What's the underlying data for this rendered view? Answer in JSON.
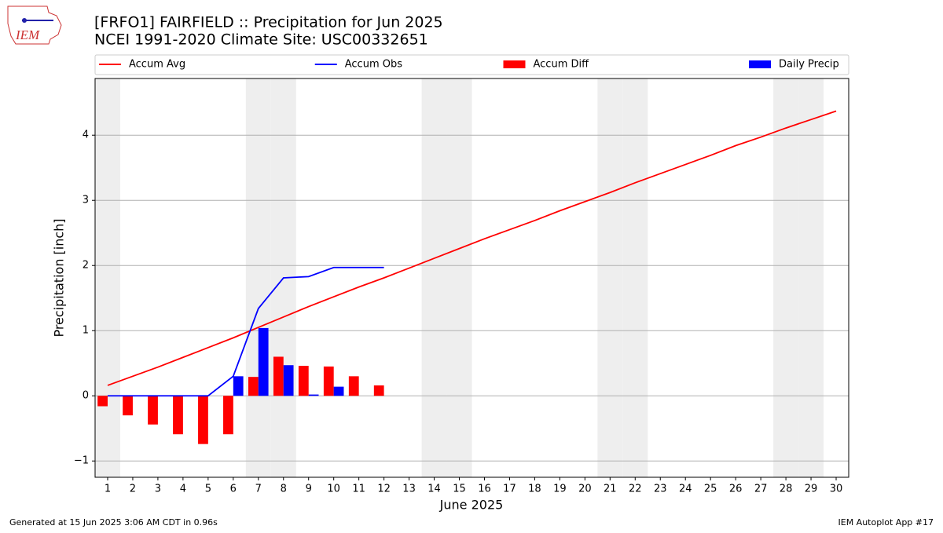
{
  "chart_data": {
    "type": "bar",
    "title": "[FRFO1] FAIRFIELD :: Precipitation for Jun 2025",
    "subtitle": "NCEI 1991-2020 Climate Site: USC00332651",
    "logo_text": "IEM",
    "ylabel": "Precipitation [inch]",
    "xlabel": "June 2025",
    "footer_left": "Generated at 15 Jun 2025 3:06 AM CDT in 0.96s",
    "footer_right": "IEM Autoplot App #17",
    "x": [
      1,
      2,
      3,
      4,
      5,
      6,
      7,
      8,
      9,
      10,
      11,
      12,
      13,
      14,
      15,
      16,
      17,
      18,
      19,
      20,
      21,
      22,
      23,
      24,
      25,
      26,
      27,
      28,
      29,
      30
    ],
    "xlim": [
      0.5,
      30.5
    ],
    "xticks": [
      1,
      2,
      3,
      4,
      5,
      6,
      7,
      8,
      9,
      10,
      11,
      12,
      13,
      14,
      15,
      16,
      17,
      18,
      19,
      20,
      21,
      22,
      23,
      24,
      25,
      26,
      27,
      28,
      29,
      30
    ],
    "ylim": [
      -1.25,
      4.87
    ],
    "yticks": [
      {
        "value": -1,
        "label": "−1"
      },
      0,
      1,
      2,
      3,
      4
    ],
    "grid": true,
    "shaded_days": [
      1,
      7,
      8,
      14,
      15,
      21,
      22,
      28,
      29
    ],
    "series": [
      {
        "name": "Accum Avg",
        "kind": "line",
        "color": "#ff0000",
        "values": [
          0.16,
          0.3,
          0.44,
          0.59,
          0.74,
          0.89,
          1.05,
          1.21,
          1.37,
          1.52,
          1.67,
          1.81,
          1.96,
          2.11,
          2.26,
          2.41,
          2.55,
          2.69,
          2.84,
          2.98,
          3.12,
          3.27,
          3.41,
          3.55,
          3.69,
          3.84,
          3.97,
          4.11,
          4.24,
          4.37
        ]
      },
      {
        "name": "Accum Obs",
        "kind": "line",
        "color": "#0000ff",
        "values": [
          0,
          0,
          0,
          0,
          0,
          0.3,
          1.34,
          1.81,
          1.83,
          1.97,
          1.97,
          1.97,
          null,
          null,
          null,
          null,
          null,
          null,
          null,
          null,
          null,
          null,
          null,
          null,
          null,
          null,
          null,
          null,
          null,
          null
        ]
      },
      {
        "name": "Accum Diff",
        "kind": "bar",
        "color": "#ff0000",
        "values": [
          -0.16,
          -0.3,
          -0.44,
          -0.59,
          -0.74,
          -0.59,
          0.29,
          0.6,
          0.46,
          0.45,
          0.3,
          0.16,
          null,
          null,
          null,
          null,
          null,
          null,
          null,
          null,
          null,
          null,
          null,
          null,
          null,
          null,
          null,
          null,
          null,
          null
        ]
      },
      {
        "name": "Daily Precip",
        "kind": "bar",
        "color": "#0000ff",
        "values": [
          0,
          0,
          0,
          0,
          0,
          0.3,
          1.04,
          0.47,
          0.02,
          0.14,
          0,
          0,
          null,
          null,
          null,
          null,
          null,
          null,
          null,
          null,
          null,
          null,
          null,
          null,
          null,
          null,
          null,
          null,
          null,
          null
        ]
      }
    ]
  }
}
